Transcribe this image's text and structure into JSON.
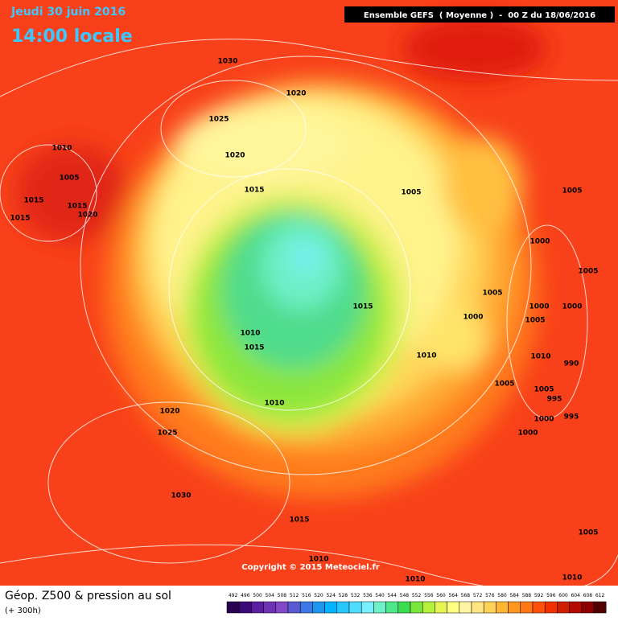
{
  "header": {
    "date": "Jeudi 30 juin 2016",
    "time": "14:00 locale",
    "model": "Ensemble GEFS  ( Moyenne )  -  00 Z du 18/06/2016"
  },
  "map": {
    "isobar_labels": [
      1030,
      1020,
      1025,
      1020,
      1010,
      1005,
      1015,
      1015,
      1020,
      1015,
      1015,
      1005,
      1005,
      1000,
      1005,
      1005,
      1000,
      1000,
      1000,
      1005,
      1015,
      1010,
      1015,
      1010,
      1010,
      990,
      1005,
      1005,
      995,
      995,
      1000,
      1000,
      1010,
      1020,
      1025,
      1030,
      1015,
      1010,
      1010,
      1005,
      1010
    ],
    "copyright": "Copyright © 2015 Meteociel.fr"
  },
  "footer": {
    "title": "Géop. Z500 & pression au sol",
    "lead": "(+ 300h)",
    "scale": {
      "ticks": [
        492,
        496,
        500,
        504,
        508,
        512,
        516,
        520,
        524,
        528,
        532,
        536,
        540,
        544,
        548,
        552,
        556,
        560,
        564,
        568,
        572,
        576,
        580,
        584,
        588,
        592,
        596,
        600,
        604,
        608,
        612
      ],
      "colors": [
        "#2a0050",
        "#3c0a78",
        "#5a1ea0",
        "#6e32b4",
        "#8246c8",
        "#5a5ad2",
        "#3c78e6",
        "#1e96f0",
        "#00b4ff",
        "#28c8ff",
        "#50dcff",
        "#78f0ff",
        "#6ef0c8",
        "#50e68c",
        "#3cdc50",
        "#78e63c",
        "#b4f03c",
        "#e6f550",
        "#ffff82",
        "#fff5a0",
        "#ffe682",
        "#ffd25a",
        "#ffb432",
        "#ff961e",
        "#ff7814",
        "#ff500a",
        "#f03200",
        "#d21e00",
        "#b40a00",
        "#8c0000",
        "#500000"
      ]
    }
  }
}
